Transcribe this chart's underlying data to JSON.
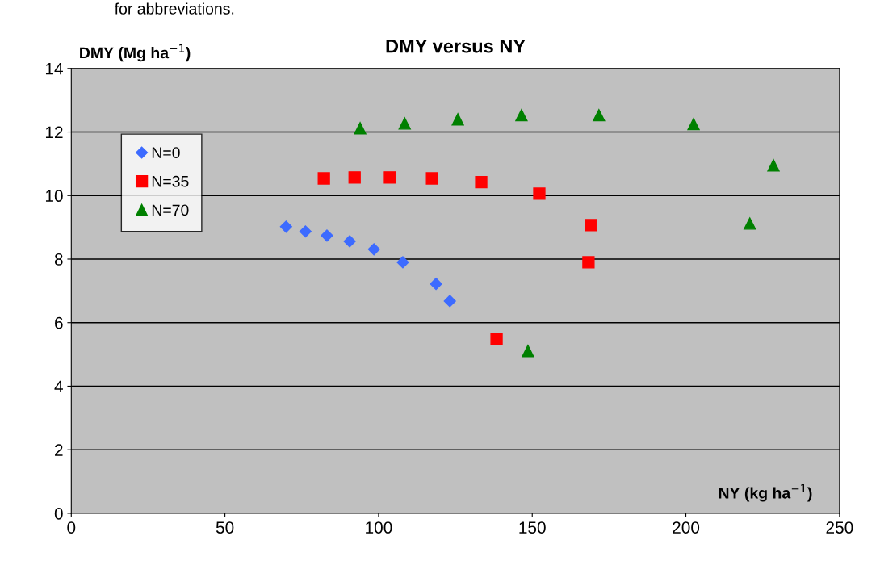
{
  "chart_data": {
    "type": "scatter",
    "title": "DMY versus NY",
    "xlabel": "NY (kg ha$^{−1}$)",
    "ylabel": "DMY (Mg ha$^{−1}$)",
    "annotations": [
      "for abbreviations."
    ],
    "xlim": [
      0,
      250
    ],
    "xticks": [
      0,
      50,
      100,
      150,
      200,
      250
    ],
    "ylim": [
      0,
      14
    ],
    "yticks": [
      0,
      2,
      4,
      6,
      8,
      10,
      12,
      14
    ],
    "grid": "y",
    "legend": "top left",
    "series": [
      {
        "name": "N=0",
        "color": "#3d6bff",
        "marker": "diamond",
        "x": [
          69.9,
          76.2,
          83.2,
          90.6,
          98.5,
          107.9,
          118.7,
          123.2
        ],
        "values": [
          9.02,
          8.87,
          8.74,
          8.56,
          8.31,
          7.9,
          7.22,
          6.68
        ]
      },
      {
        "name": "N=35",
        "color": "#ff0000",
        "marker": "square",
        "x": [
          82.2,
          92.2,
          103.7,
          117.4,
          133.4,
          152.3,
          169.1,
          168.3,
          138.4
        ],
        "values": [
          10.54,
          10.57,
          10.57,
          10.54,
          10.42,
          10.06,
          9.07,
          7.9,
          5.49
        ]
      },
      {
        "name": "N=70",
        "color": "#008000",
        "marker": "triangle",
        "x": [
          94.0,
          108.5,
          125.8,
          146.5,
          171.7,
          202.5,
          228.5,
          220.8,
          148.6
        ],
        "values": [
          12.12,
          12.27,
          12.4,
          12.53,
          12.53,
          12.25,
          10.95,
          9.12,
          5.11
        ]
      }
    ]
  }
}
